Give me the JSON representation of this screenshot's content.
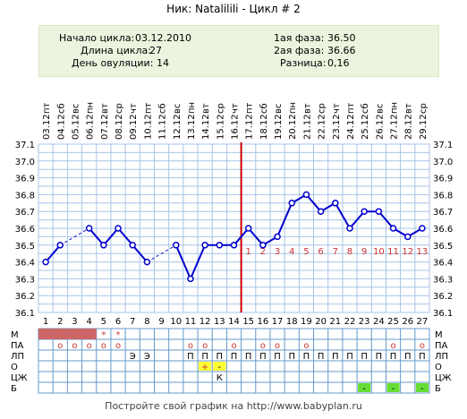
{
  "header": {
    "title": "Ник: Natalilili - Цикл # 2"
  },
  "summary": {
    "cycle_start_label": "Начало цикла:",
    "cycle_start_value": "03.12.2010",
    "cycle_length_label": "Длина цикла:",
    "cycle_length_value": "27",
    "ovulation_day_label": "День овуляции:",
    "ovulation_day_value": "14",
    "phase1_label": "1ая фаза:",
    "phase1_value": "36.50",
    "phase2_label": "2ая фаза:",
    "phase2_value": "36.66",
    "difference_label": "Разница:",
    "difference_value": "0,16"
  },
  "footer": {
    "text": "Постройте свой график на http://www.babyplan.ru"
  },
  "chart_data": {
    "type": "line",
    "title": "",
    "days": [
      1,
      2,
      3,
      4,
      5,
      6,
      7,
      8,
      9,
      10,
      11,
      12,
      13,
      14,
      15,
      16,
      17,
      18,
      19,
      20,
      21,
      22,
      23,
      24,
      25,
      26,
      27
    ],
    "weekdays": [
      "пт",
      "сб",
      "вс",
      "пн",
      "вт",
      "ср",
      "чт",
      "пт",
      "сб",
      "вс",
      "пн",
      "вт",
      "ср",
      "чт",
      "пт",
      "сб",
      "вс",
      "пн",
      "вт",
      "ср",
      "чт",
      "пт",
      "сб",
      "вс",
      "пн",
      "вт",
      "ср"
    ],
    "dates": [
      "03.12",
      "04.12",
      "05.12",
      "06.12",
      "07.12",
      "08.12",
      "09.12",
      "10.12",
      "11.12",
      "12.12",
      "13.12",
      "14.12",
      "15.12",
      "16.12",
      "17.12",
      "18.12",
      "19.12",
      "20.12",
      "21.12",
      "22.12",
      "23.12",
      "24.12",
      "25.12",
      "26.12",
      "27.12",
      "28.12",
      "29.12"
    ],
    "temperatures": [
      36.4,
      36.5,
      null,
      36.6,
      36.5,
      36.6,
      36.5,
      36.4,
      null,
      36.5,
      36.3,
      36.5,
      36.5,
      36.5,
      36.6,
      36.5,
      36.55,
      36.75,
      36.8,
      36.7,
      36.75,
      36.6,
      36.7,
      36.7,
      36.6,
      36.55,
      36.6
    ],
    "dashed_gaps": [
      [
        2,
        4
      ],
      [
        8,
        10
      ]
    ],
    "ylim": [
      36.1,
      37.1
    ],
    "y_ticks": [
      "36.1",
      "36.2",
      "36.3",
      "36.4",
      "36.5",
      "36.6",
      "36.7",
      "36.8",
      "36.9",
      "37.0",
      "37.1"
    ],
    "ovulation_day": 14,
    "ovulation_line_color": "#cc0000",
    "luteal_day_labels": [
      "1",
      "2",
      "3",
      "4",
      "5",
      "6",
      "7",
      "8",
      "9",
      "10",
      "11",
      "12",
      "13"
    ],
    "line_color": "#0000cc",
    "grid_color": "#a8c4e8",
    "moon_day": 16,
    "moon_temp": 37.0,
    "moon_icon": "crescent-moon-icon",
    "grid": true
  },
  "table": {
    "row_labels": [
      "М",
      "ПА",
      "ЛП",
      "О",
      "ЦЖ",
      "Б"
    ],
    "rows": {
      "M": {
        "filled_days": [
          1,
          2,
          3,
          4
        ],
        "star_days": [
          5,
          6
        ],
        "fill_color": "#cc6666",
        "star_symbol": "*"
      },
      "PA": {
        "days": [
          2,
          3,
          4,
          5,
          6,
          11,
          12,
          14,
          16,
          17,
          19,
          25,
          27
        ],
        "symbol": "o"
      },
      "LP": {
        "e_days": [
          7,
          8
        ],
        "e_symbol": "Э",
        "p_days": [
          11,
          12,
          13,
          14,
          15,
          16,
          17,
          18,
          19,
          20,
          21,
          22,
          23,
          24,
          25,
          26,
          27
        ],
        "p_symbol": "П"
      },
      "O": {
        "plus_day": 12,
        "plus_symbol": "+",
        "minus_day": 13,
        "minus_symbol": "-",
        "color": "#ffff33"
      },
      "TsZh": {
        "k_day": 13,
        "k_symbol": "К"
      },
      "B": {
        "days": [
          23,
          25,
          27
        ],
        "symbol": "-",
        "color": "#66dd33"
      }
    }
  }
}
